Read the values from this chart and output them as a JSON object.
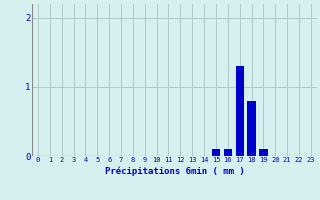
{
  "hours": [
    0,
    1,
    2,
    3,
    4,
    5,
    6,
    7,
    8,
    9,
    10,
    11,
    12,
    13,
    14,
    15,
    16,
    17,
    18,
    19,
    20,
    21,
    22,
    23
  ],
  "values": [
    0,
    0,
    0,
    0,
    0,
    0,
    0,
    0,
    0,
    0,
    0,
    0,
    0,
    0,
    0,
    0.1,
    0.1,
    1.3,
    0.8,
    0.1,
    0,
    0,
    0,
    0
  ],
  "bar_color": "#0000cc",
  "bg_color": "#d6f0f0",
  "grid_color": "#b0c8c8",
  "xlabel": "Précipitations 6min ( mm )",
  "xlabel_color": "#0000cc",
  "tick_color": "#0000cc",
  "yticks": [
    0,
    1,
    2
  ],
  "ylim": [
    0,
    2.2
  ],
  "xlim": [
    -0.5,
    23.5
  ]
}
